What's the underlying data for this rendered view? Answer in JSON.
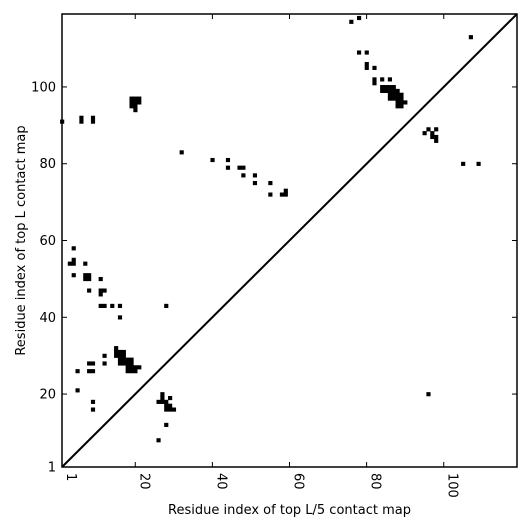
{
  "chart_data": {
    "type": "scatter",
    "title": "",
    "xlabel": "Residue index of top L/5 contact map",
    "ylabel": "Residue index of top L contact map",
    "xlim": [
      1,
      119
    ],
    "ylim": [
      1,
      119
    ],
    "x_ticks": [
      {
        "value": 1,
        "label": "1"
      },
      {
        "value": 20,
        "label": "20"
      },
      {
        "value": 40,
        "label": "40"
      },
      {
        "value": 60,
        "label": "60"
      },
      {
        "value": 80,
        "label": "80"
      },
      {
        "value": 100,
        "label": "100"
      }
    ],
    "y_ticks": [
      {
        "value": 1,
        "label": "1"
      },
      {
        "value": 20,
        "label": "20"
      },
      {
        "value": 40,
        "label": "40"
      },
      {
        "value": 60,
        "label": "60"
      },
      {
        "value": 80,
        "label": "80"
      },
      {
        "value": 100,
        "label": "100"
      }
    ],
    "diagonal": true,
    "upper_triangle_points": [
      [
        1,
        91
      ],
      [
        6,
        91
      ],
      [
        6,
        92
      ],
      [
        9,
        91
      ],
      [
        9,
        92
      ],
      [
        19,
        95
      ],
      [
        20,
        95
      ],
      [
        19,
        96
      ],
      [
        20,
        96
      ],
      [
        21,
        96
      ],
      [
        19,
        97
      ],
      [
        20,
        97
      ],
      [
        21,
        97
      ],
      [
        20,
        94
      ],
      [
        32,
        83
      ],
      [
        40,
        81
      ],
      [
        44,
        81
      ],
      [
        44,
        79
      ],
      [
        47,
        79
      ],
      [
        48,
        79
      ],
      [
        48,
        77
      ],
      [
        51,
        77
      ],
      [
        51,
        75
      ],
      [
        55,
        75
      ],
      [
        55,
        72
      ],
      [
        58,
        72
      ],
      [
        59,
        72
      ],
      [
        59,
        73
      ],
      [
        76,
        117
      ],
      [
        78,
        118
      ],
      [
        78,
        109
      ],
      [
        80,
        109
      ],
      [
        80,
        106
      ],
      [
        80,
        105
      ],
      [
        82,
        105
      ],
      [
        82,
        102
      ],
      [
        82,
        101
      ],
      [
        84,
        102
      ],
      [
        86,
        102
      ],
      [
        84,
        100
      ],
      [
        85,
        100
      ],
      [
        86,
        100
      ],
      [
        87,
        100
      ],
      [
        84,
        99
      ],
      [
        85,
        99
      ],
      [
        86,
        99
      ],
      [
        87,
        99
      ],
      [
        88,
        99
      ],
      [
        86,
        98
      ],
      [
        87,
        98
      ],
      [
        88,
        98
      ],
      [
        89,
        98
      ],
      [
        86,
        97
      ],
      [
        87,
        97
      ],
      [
        88,
        97
      ],
      [
        89,
        97
      ],
      [
        88,
        96
      ],
      [
        89,
        96
      ],
      [
        90,
        96
      ],
      [
        88,
        95
      ],
      [
        89,
        95
      ],
      [
        95,
        88
      ],
      [
        96,
        89
      ],
      [
        97,
        88
      ],
      [
        97,
        87
      ],
      [
        98,
        89
      ],
      [
        98,
        87
      ],
      [
        98,
        86
      ],
      [
        105,
        80
      ],
      [
        109,
        80
      ],
      [
        107,
        113
      ]
    ],
    "lower_triangle_points": [
      [
        3,
        54
      ],
      [
        4,
        54
      ],
      [
        4,
        55
      ],
      [
        4,
        58
      ],
      [
        4,
        51
      ],
      [
        7,
        54
      ],
      [
        7,
        51
      ],
      [
        8,
        51
      ],
      [
        7,
        50
      ],
      [
        8,
        50
      ],
      [
        8,
        47
      ],
      [
        11,
        50
      ],
      [
        11,
        47
      ],
      [
        12,
        47
      ],
      [
        11,
        46
      ],
      [
        11,
        43
      ],
      [
        12,
        43
      ],
      [
        14,
        43
      ],
      [
        16,
        43
      ],
      [
        16,
        40
      ],
      [
        5,
        26
      ],
      [
        8,
        26
      ],
      [
        9,
        26
      ],
      [
        8,
        28
      ],
      [
        9,
        28
      ],
      [
        5,
        21
      ],
      [
        9,
        18
      ],
      [
        9,
        16
      ],
      [
        12,
        30
      ],
      [
        12,
        28
      ],
      [
        15,
        32
      ],
      [
        15,
        31
      ],
      [
        16,
        31
      ],
      [
        17,
        31
      ],
      [
        15,
        30
      ],
      [
        16,
        30
      ],
      [
        17,
        30
      ],
      [
        16,
        29
      ],
      [
        17,
        29
      ],
      [
        18,
        29
      ],
      [
        19,
        29
      ],
      [
        16,
        28
      ],
      [
        17,
        28
      ],
      [
        18,
        28
      ],
      [
        19,
        28
      ],
      [
        18,
        27
      ],
      [
        19,
        27
      ],
      [
        20,
        27
      ],
      [
        21,
        27
      ],
      [
        18,
        26
      ],
      [
        19,
        26
      ],
      [
        20,
        26
      ],
      [
        27,
        20
      ],
      [
        27,
        19
      ],
      [
        29,
        19
      ],
      [
        26,
        18
      ],
      [
        27,
        18
      ],
      [
        28,
        18
      ],
      [
        28,
        17
      ],
      [
        29,
        17
      ],
      [
        28,
        16
      ],
      [
        29,
        16
      ],
      [
        30,
        16
      ],
      [
        28,
        43
      ],
      [
        28,
        12
      ],
      [
        26,
        8
      ],
      [
        96,
        20
      ]
    ]
  }
}
